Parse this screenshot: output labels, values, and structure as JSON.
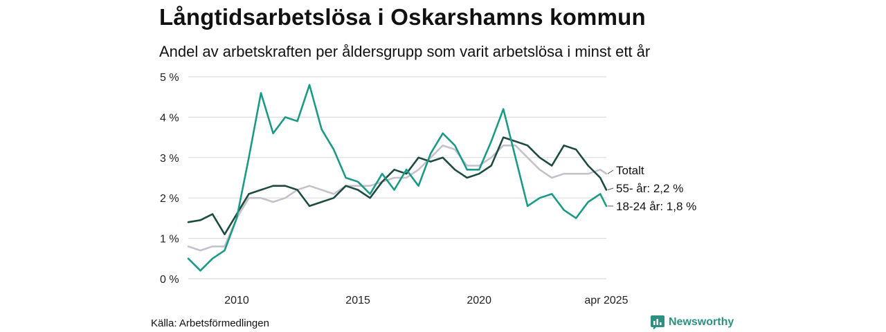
{
  "title": "Långtidsarbetslösa i Oskarshamns kommun",
  "subtitle": "Andel av arbetskraften per åldersgrupp som varit arbetslösa i minst ett år",
  "source": "Källa: Arbetsförmedlingen",
  "brand": "Newsworthy",
  "chart_data": {
    "type": "line",
    "title": "Långtidsarbetslösa i Oskarshamns kommun",
    "subtitle": "Andel av arbetskraften per åldersgrupp som varit arbetslösa i minst ett år",
    "x_ticks": [
      {
        "label": "2010",
        "x": "2010-01"
      },
      {
        "label": "2015",
        "x": "2015-01"
      },
      {
        "label": "2020",
        "x": "2020-01"
      },
      {
        "label": "apr 2025",
        "x": "2025-04"
      }
    ],
    "y_ticks": [
      {
        "label": "0 %",
        "value": 0
      },
      {
        "label": "1 %",
        "value": 1
      },
      {
        "label": "2 %",
        "value": 2
      },
      {
        "label": "3 %",
        "value": 3
      },
      {
        "label": "4 %",
        "value": 4
      },
      {
        "label": "5 %",
        "value": 5
      }
    ],
    "xlim": [
      "2008-01",
      "2025-04"
    ],
    "ylim": [
      0,
      5
    ],
    "grid": true,
    "series": [
      {
        "name": "Totalt",
        "label": "Totalt",
        "color": "#c4c1cc",
        "points": [
          [
            "2008-01",
            0.8
          ],
          [
            "2008-07",
            0.7
          ],
          [
            "2009-01",
            0.8
          ],
          [
            "2009-07",
            0.8
          ],
          [
            "2010-01",
            1.5
          ],
          [
            "2010-07",
            2.0
          ],
          [
            "2011-01",
            2.0
          ],
          [
            "2011-07",
            1.9
          ],
          [
            "2012-01",
            2.0
          ],
          [
            "2012-07",
            2.2
          ],
          [
            "2013-01",
            2.3
          ],
          [
            "2013-07",
            2.2
          ],
          [
            "2014-01",
            2.1
          ],
          [
            "2014-07",
            2.3
          ],
          [
            "2015-01",
            2.3
          ],
          [
            "2015-07",
            2.3
          ],
          [
            "2016-01",
            2.4
          ],
          [
            "2016-07",
            2.5
          ],
          [
            "2017-01",
            2.5
          ],
          [
            "2017-07",
            2.7
          ],
          [
            "2018-01",
            3.0
          ],
          [
            "2018-07",
            3.3
          ],
          [
            "2019-01",
            3.2
          ],
          [
            "2019-07",
            2.8
          ],
          [
            "2020-01",
            2.8
          ],
          [
            "2020-07",
            3.0
          ],
          [
            "2021-01",
            3.3
          ],
          [
            "2021-07",
            3.3
          ],
          [
            "2022-01",
            3.0
          ],
          [
            "2022-07",
            2.7
          ],
          [
            "2023-01",
            2.5
          ],
          [
            "2023-07",
            2.6
          ],
          [
            "2024-01",
            2.6
          ],
          [
            "2024-07",
            2.6
          ],
          [
            "2025-01",
            2.7
          ],
          [
            "2025-04",
            2.6
          ]
        ]
      },
      {
        "name": "55- år",
        "label": "55- år: 2,2 %",
        "color": "#1d4b3f",
        "points": [
          [
            "2008-01",
            1.4
          ],
          [
            "2008-07",
            1.45
          ],
          [
            "2009-01",
            1.6
          ],
          [
            "2009-07",
            1.1
          ],
          [
            "2010-01",
            1.6
          ],
          [
            "2010-07",
            2.1
          ],
          [
            "2011-01",
            2.2
          ],
          [
            "2011-07",
            2.3
          ],
          [
            "2012-01",
            2.3
          ],
          [
            "2012-07",
            2.2
          ],
          [
            "2013-01",
            1.8
          ],
          [
            "2013-07",
            1.9
          ],
          [
            "2014-01",
            2.0
          ],
          [
            "2014-07",
            2.3
          ],
          [
            "2015-01",
            2.2
          ],
          [
            "2015-07",
            2.0
          ],
          [
            "2016-01",
            2.4
          ],
          [
            "2016-07",
            2.7
          ],
          [
            "2017-01",
            2.6
          ],
          [
            "2017-07",
            3.0
          ],
          [
            "2018-01",
            2.9
          ],
          [
            "2018-07",
            3.0
          ],
          [
            "2019-01",
            2.7
          ],
          [
            "2019-07",
            2.5
          ],
          [
            "2020-01",
            2.6
          ],
          [
            "2020-07",
            2.8
          ],
          [
            "2021-01",
            3.5
          ],
          [
            "2021-07",
            3.4
          ],
          [
            "2022-01",
            3.3
          ],
          [
            "2022-07",
            3.0
          ],
          [
            "2023-01",
            2.8
          ],
          [
            "2023-07",
            3.3
          ],
          [
            "2024-01",
            3.2
          ],
          [
            "2024-07",
            2.8
          ],
          [
            "2025-01",
            2.5
          ],
          [
            "2025-04",
            2.2
          ]
        ]
      },
      {
        "name": "18-24 år",
        "label": "18-24 år: 1,8 %",
        "color": "#1a9a85",
        "points": [
          [
            "2008-01",
            0.5
          ],
          [
            "2008-07",
            0.2
          ],
          [
            "2009-01",
            0.5
          ],
          [
            "2009-07",
            0.7
          ],
          [
            "2010-01",
            1.5
          ],
          [
            "2010-07",
            3.0
          ],
          [
            "2011-01",
            4.6
          ],
          [
            "2011-07",
            3.6
          ],
          [
            "2012-01",
            4.0
          ],
          [
            "2012-07",
            3.9
          ],
          [
            "2013-01",
            4.8
          ],
          [
            "2013-07",
            3.7
          ],
          [
            "2014-01",
            3.2
          ],
          [
            "2014-07",
            2.5
          ],
          [
            "2015-01",
            2.4
          ],
          [
            "2015-07",
            2.1
          ],
          [
            "2016-01",
            2.6
          ],
          [
            "2016-07",
            2.2
          ],
          [
            "2017-01",
            2.7
          ],
          [
            "2017-07",
            2.3
          ],
          [
            "2018-01",
            3.1
          ],
          [
            "2018-07",
            3.6
          ],
          [
            "2019-01",
            3.3
          ],
          [
            "2019-07",
            2.7
          ],
          [
            "2020-01",
            2.7
          ],
          [
            "2020-07",
            3.4
          ],
          [
            "2021-01",
            4.2
          ],
          [
            "2021-07",
            3.0
          ],
          [
            "2022-01",
            1.8
          ],
          [
            "2022-07",
            2.0
          ],
          [
            "2023-01",
            2.1
          ],
          [
            "2023-07",
            1.7
          ],
          [
            "2024-01",
            1.5
          ],
          [
            "2024-07",
            1.9
          ],
          [
            "2025-01",
            2.1
          ],
          [
            "2025-04",
            1.8
          ]
        ]
      }
    ]
  }
}
